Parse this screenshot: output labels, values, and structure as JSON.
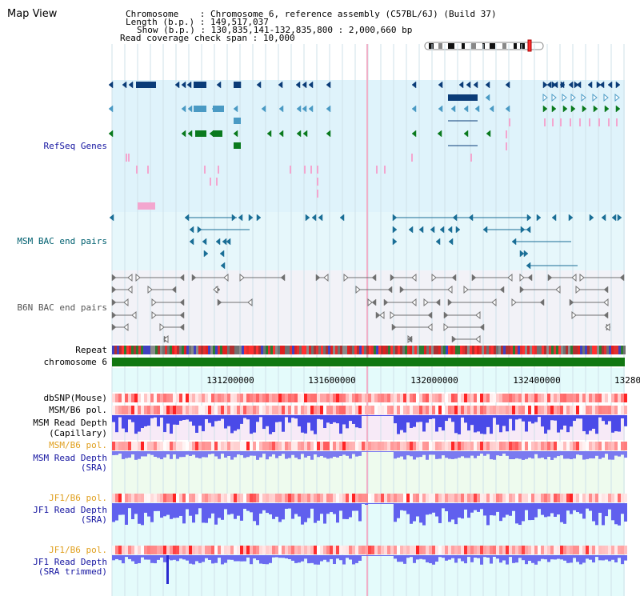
{
  "title": "Map View",
  "info": {
    "chromosome_key": "Chromosome",
    "chromosome_value": "Chromosome 6, reference assembly (C57BL/6J) (Build 37)",
    "length_key": "Length (b.p.)",
    "length_value": "149,517,037",
    "show_key": "Show (b.p.)",
    "show_value": "130,835,141-132,835,800 : 2,000,660 bp",
    "coverage_key": "Read coverage check span",
    "coverage_value": "10,000"
  },
  "tracks": {
    "refseq": "RefSeq Genes",
    "msm_bac": "MSM BAC end pairs",
    "b6n_bac": "B6N BAC end pairs",
    "repeat": "Repeat",
    "chromosome": "chromosome 6",
    "dbsnp": "dbSNP(Mouse)",
    "msm_b6_pol_1": "MSM/B6 pol.",
    "msm_depth_cap_1": "MSM Read Depth",
    "msm_depth_cap_2": "(Capillary)",
    "msm_b6_pol_2": "MSM/B6 pol.",
    "msm_depth_sra_1": "MSM Read Depth",
    "msm_depth_sra_2": "(SRA)",
    "jf1_b6_pol_1": "JF1/B6 pol.",
    "jf1_depth_sra_1": "JF1 Read Depth",
    "jf1_depth_sra_2": "(SRA)",
    "jf1_b6_pol_2": "JF1/B6 pol.",
    "jf1_depth_trim_1": "JF1 Read Depth",
    "jf1_depth_trim_2": "(SRA trimmed)"
  },
  "axis_ticks": [
    "131200000",
    "131600000",
    "132000000",
    "132400000",
    "13280"
  ],
  "colors": {
    "refseq_bg": "#dff3fb",
    "msm_bac_bg": "#e6f7fb",
    "b6n_bac_bg": "#f2f2f7",
    "axis_bg": "#e4fbfb",
    "cap_bg": "#f7eaf7",
    "sra_bg": "#eefbee",
    "jf1_bg": "#e4fbfb",
    "refseq_dark": "#0b3c78",
    "refseq_mid": "#4a9ac4",
    "refseq_green": "#0a7a1e",
    "pink": "#f3a6cf",
    "bac_blue": "#1a6e96",
    "bac_gray": "#707070",
    "chromosome": "#117711",
    "depth_blue": "#5a5af0",
    "label_blue": "#1414a0",
    "label_teal": "#006070",
    "label_orange": "#e0a020"
  }
}
